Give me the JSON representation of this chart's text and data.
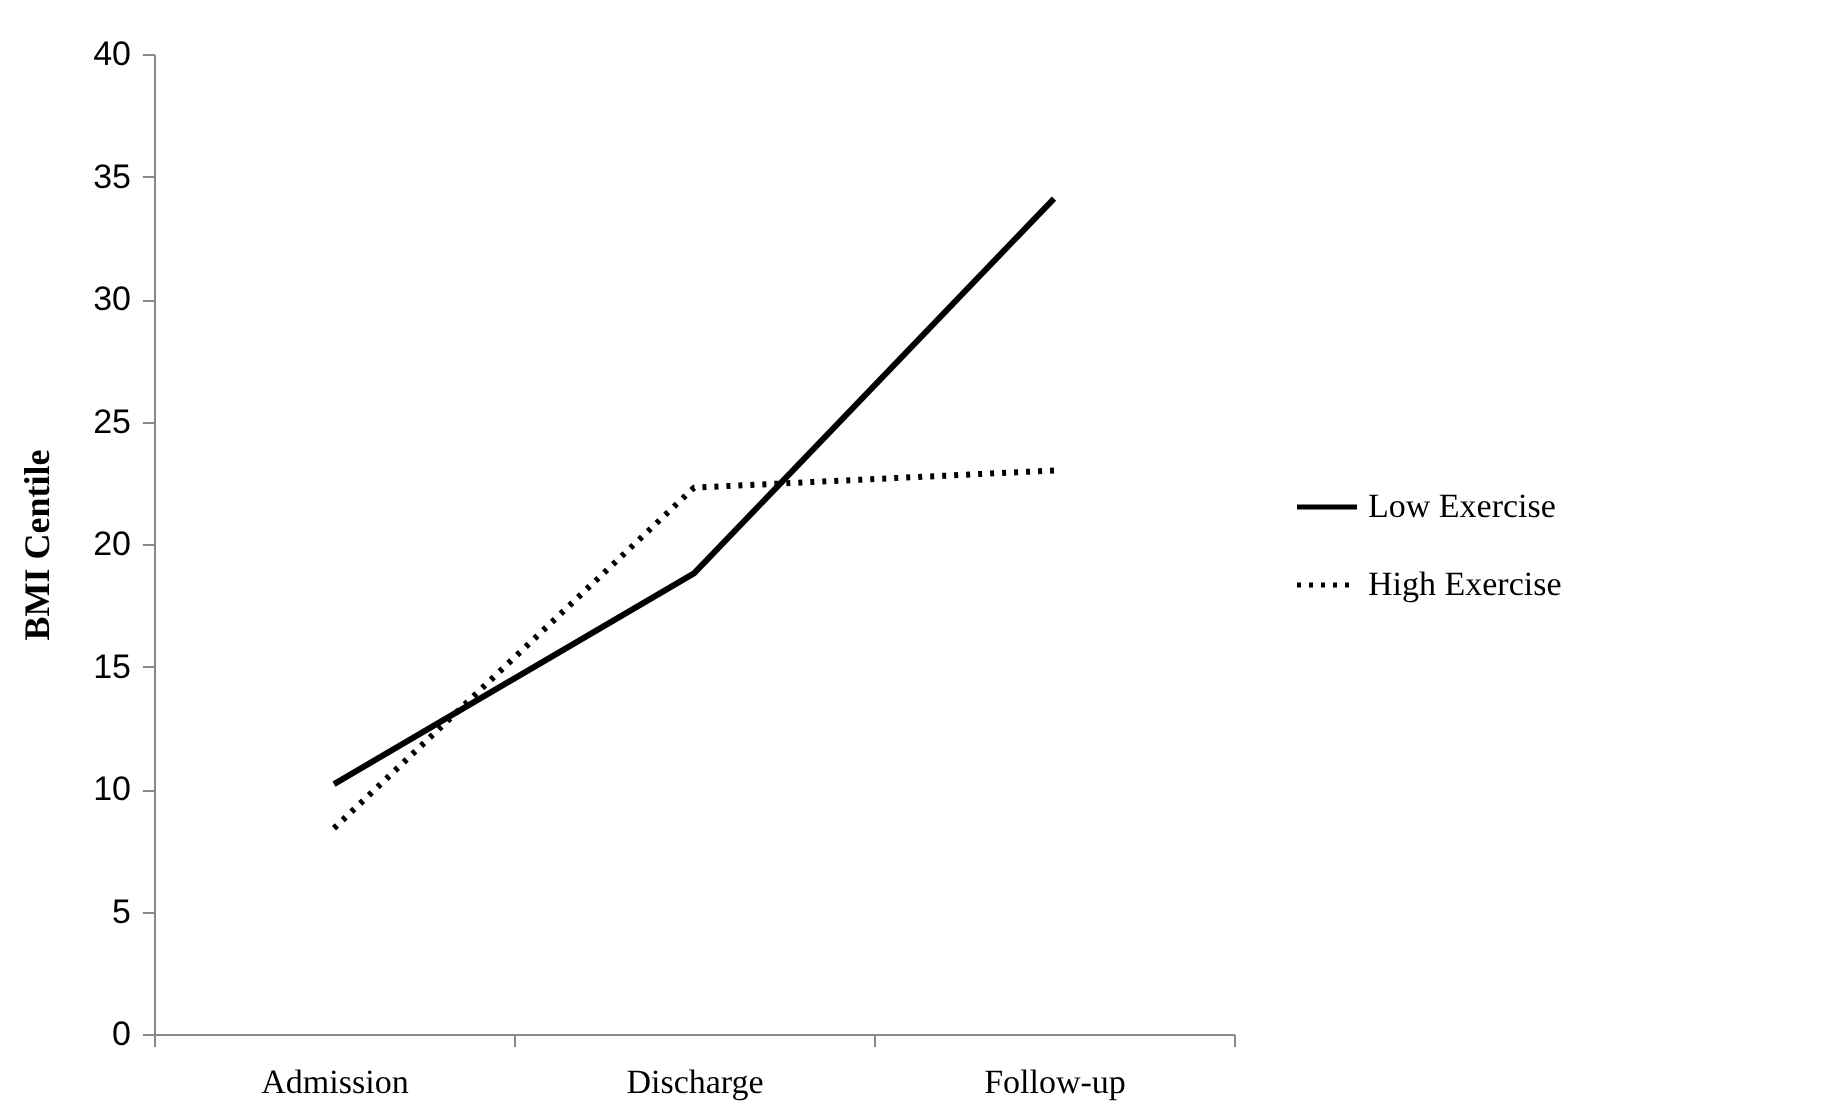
{
  "chart_data": {
    "type": "line",
    "ylabel": "BMI Centile",
    "categories": [
      "Admission",
      "Discharge",
      "Follow-up"
    ],
    "series": [
      {
        "name": "Low Exercise",
        "color": "#000000",
        "values": [
          10.2,
          18.8,
          34.1
        ],
        "line_style": "solid"
      },
      {
        "name": "High Exercise",
        "color": "#000000",
        "values": [
          8.4,
          22.3,
          23.0
        ],
        "line_style": "dotted"
      }
    ],
    "ylim": [
      0,
      40
    ],
    "yticks": [
      0,
      5,
      10,
      15,
      20,
      25,
      30,
      35,
      40
    ],
    "grid": false,
    "legend": "right",
    "marker": "none"
  }
}
